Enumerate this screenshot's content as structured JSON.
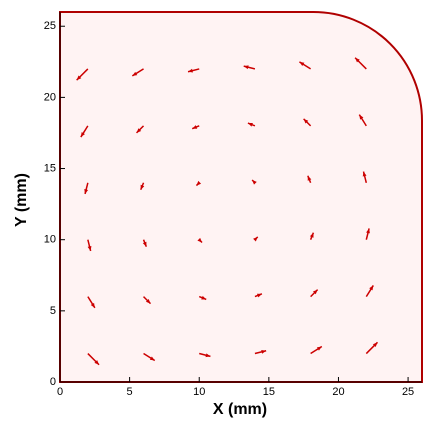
{
  "chart_data": {
    "type": "quiver",
    "xlabel": "X (mm)",
    "ylabel": "Y (mm)",
    "color": "#cc0000",
    "xlim": [
      0,
      26
    ],
    "ylim": [
      0,
      26
    ],
    "xticks": [
      0,
      5,
      10,
      15,
      20,
      25
    ],
    "yticks": [
      0,
      5,
      10,
      15,
      20,
      25
    ],
    "x": [
      2,
      6,
      10,
      14,
      18,
      22,
      2,
      6,
      10,
      14,
      18,
      22,
      2,
      6,
      10,
      14,
      18,
      22,
      2,
      6,
      10,
      14,
      18,
      22,
      2,
      6,
      10,
      14,
      18,
      22,
      2,
      6,
      10,
      14,
      18,
      22
    ],
    "y": [
      2,
      2,
      2,
      2,
      2,
      2,
      6,
      6,
      6,
      6,
      6,
      6,
      10,
      10,
      10,
      10,
      10,
      10,
      14,
      14,
      14,
      14,
      14,
      14,
      18,
      18,
      18,
      18,
      18,
      18,
      22,
      22,
      22,
      22,
      22,
      22
    ],
    "u": [
      0.8,
      0.8,
      0.8,
      0.8,
      0.8,
      0.8,
      0.5,
      0.5,
      0.5,
      0.5,
      0.5,
      0.5,
      0.2,
      0.2,
      0.2,
      0.2,
      0.2,
      0.2,
      -0.2,
      -0.2,
      -0.2,
      -0.2,
      -0.2,
      -0.2,
      -0.5,
      -0.5,
      -0.5,
      -0.5,
      -0.5,
      -0.5,
      -0.8,
      -0.8,
      -0.8,
      -0.8,
      -0.8,
      -0.8
    ],
    "v": [
      -0.8,
      -0.5,
      -0.2,
      0.2,
      0.5,
      0.8,
      -0.8,
      -0.5,
      -0.2,
      0.2,
      0.5,
      0.8,
      -0.8,
      -0.5,
      -0.2,
      0.2,
      0.5,
      0.8,
      -0.8,
      -0.5,
      -0.2,
      0.2,
      0.5,
      0.8,
      -0.8,
      -0.5,
      -0.2,
      0.2,
      0.5,
      0.8,
      -0.8,
      -0.5,
      -0.2,
      0.2,
      0.5,
      0.8
    ]
  }
}
